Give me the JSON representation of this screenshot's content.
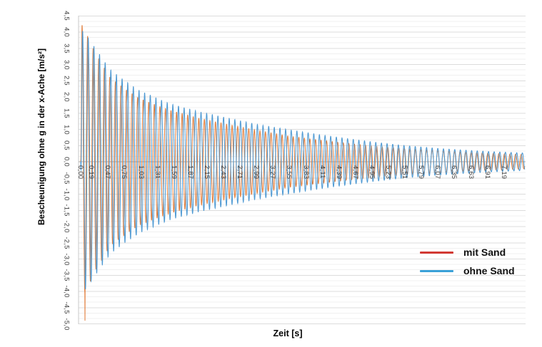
{
  "labels": {
    "x_axis_title": "Zeit [s]",
    "y_axis_title": "Bescheunigung ohne g in der x-Ache [m/s²]"
  },
  "legend": {
    "items": [
      {
        "label": "mit Sand",
        "color": "#d23933"
      },
      {
        "label": "ohne Sand",
        "color": "#3aa1d8"
      }
    ]
  },
  "chart_data": {
    "type": "line",
    "title": "",
    "xlabel": "Zeit [s]",
    "ylabel": "Bescheunigung ohne g in der x-Ache [m/s²]",
    "xlim": [
      0,
      7.54
    ],
    "ylim": [
      -5.0,
      4.5
    ],
    "y_major_step": 0.5,
    "grid": "horizontal major + minor lines",
    "legend_position": "right-middle",
    "x_tick_labels": [
      "0,00",
      "0,19",
      "0,47",
      "0,75",
      "1,03",
      "1,31",
      "1,59",
      "1,87",
      "2,15",
      "2,43",
      "2,71",
      "2,99",
      "3,27",
      "3,55",
      "3,83",
      "4,11",
      "4,39",
      "4,67",
      "4,95",
      "5,23",
      "5,51",
      "5,79",
      "6,07",
      "6,35",
      "6,63",
      "6,91",
      "7,19"
    ],
    "x_tick_values": [
      0.0,
      0.19,
      0.47,
      0.75,
      1.03,
      1.31,
      1.59,
      1.87,
      2.15,
      2.43,
      2.71,
      2.99,
      3.27,
      3.55,
      3.83,
      4.11,
      4.39,
      4.67,
      4.95,
      5.23,
      5.51,
      5.79,
      6.07,
      6.35,
      6.63,
      6.91,
      7.19
    ],
    "y_tick_labels": [
      "4,5",
      "4,0",
      "3,5",
      "3,0",
      "2,5",
      "2,0",
      "1,5",
      "1,0",
      "0,5",
      "0,0",
      "-0,5",
      "-1,0",
      "-1,5",
      "-2,0",
      "-2,5",
      "-3,0",
      "-3,5",
      "-4,0",
      "-4,5",
      "-5,0"
    ],
    "y_tick_values": [
      4.5,
      4.0,
      3.5,
      3.0,
      2.5,
      2.0,
      1.5,
      1.0,
      0.5,
      0.0,
      -0.5,
      -1.0,
      -1.5,
      -2.0,
      -2.5,
      -3.0,
      -3.5,
      -4.0,
      -4.5,
      -5.0
    ],
    "description": "Two exponentially decaying ~10.5 Hz oscillations of acceleration vs time; 'mit Sand' (red/orange) is damped more strongly than 'ohne Sand' (blue). Initial amplitude ~ +4.2 / -4.9 m/s^2 decaying to ~ +/-0.25 m/s^2 at 7.5 s.",
    "series": [
      {
        "name": "mit Sand",
        "legend_color": "#d23933",
        "plot_color": "#e3803f",
        "model": "amplitude(t) interpolated from envelope, value = A(t)*sin(2*pi*f*t + phase)",
        "frequency_hz": 10.6,
        "phase_rad": 0,
        "envelope_t": [
          0,
          0.1,
          0.25,
          0.5,
          0.75,
          1,
          1.5,
          2,
          2.5,
          3,
          3.5,
          4,
          4.5,
          5,
          5.5,
          6,
          6.5,
          7,
          7.54
        ],
        "envelope_amplitude": [
          4.3,
          3.95,
          3.35,
          2.6,
          2.25,
          1.95,
          1.6,
          1.35,
          1.15,
          0.97,
          0.8,
          0.68,
          0.57,
          0.48,
          0.41,
          0.35,
          0.3,
          0.26,
          0.22
        ],
        "spike": {
          "t": 0.072,
          "value": -4.9
        }
      },
      {
        "name": "ohne Sand",
        "legend_color": "#3aa1d8",
        "plot_color": "#4f9ad3",
        "model": "amplitude(t) interpolated from envelope, value = A(t)*sin(2*pi*f*t + phase)",
        "frequency_hz": 10.45,
        "phase_rad": -0.6,
        "envelope_t": [
          0,
          0.1,
          0.25,
          0.5,
          0.75,
          1,
          1.5,
          2,
          2.5,
          3,
          3.5,
          4,
          4.5,
          5,
          5.5,
          6,
          6.5,
          7,
          7.54
        ],
        "envelope_amplitude": [
          4.1,
          3.9,
          3.5,
          2.85,
          2.5,
          2.2,
          1.8,
          1.55,
          1.35,
          1.15,
          1.0,
          0.85,
          0.72,
          0.6,
          0.5,
          0.42,
          0.36,
          0.31,
          0.27
        ]
      }
    ]
  }
}
